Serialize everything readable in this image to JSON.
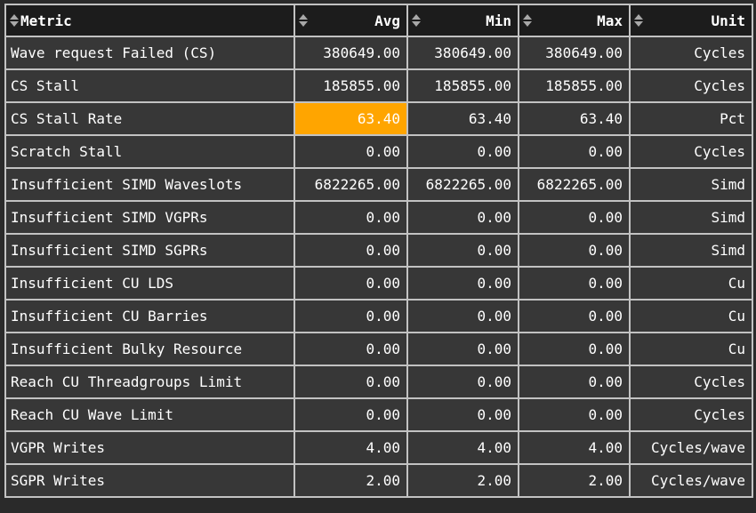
{
  "colors": {
    "page_background": "#2a2a2a",
    "header_background": "#1c1c1c",
    "row_background": "#373737",
    "border": "#c2c2c2",
    "text": "#ffffff",
    "sort_arrow": "#a8a8a8",
    "highlight": "#ffa500"
  },
  "table": {
    "columns": [
      {
        "key": "metric",
        "label": "Metric",
        "sort_icon": "sort-arrows-icon"
      },
      {
        "key": "avg",
        "label": "Avg",
        "sort_icon": "sort-arrows-icon"
      },
      {
        "key": "min",
        "label": "Min",
        "sort_icon": "sort-arrows-icon"
      },
      {
        "key": "max",
        "label": "Max",
        "sort_icon": "sort-arrows-icon"
      },
      {
        "key": "unit",
        "label": "Unit",
        "sort_icon": "sort-arrows-icon"
      }
    ],
    "rows": [
      {
        "metric": "Wave request Failed (CS)",
        "avg": "380649.00",
        "min": "380649.00",
        "max": "380649.00",
        "unit": "Cycles"
      },
      {
        "metric": "CS Stall",
        "avg": "185855.00",
        "min": "185855.00",
        "max": "185855.00",
        "unit": "Cycles"
      },
      {
        "metric": "CS Stall Rate",
        "avg": "63.40",
        "min": "63.40",
        "max": "63.40",
        "unit": "Pct"
      },
      {
        "metric": "Scratch Stall",
        "avg": "0.00",
        "min": "0.00",
        "max": "0.00",
        "unit": "Cycles"
      },
      {
        "metric": "Insufficient SIMD Waveslots",
        "avg": "6822265.00",
        "min": "6822265.00",
        "max": "6822265.00",
        "unit": "Simd"
      },
      {
        "metric": "Insufficient SIMD VGPRs",
        "avg": "0.00",
        "min": "0.00",
        "max": "0.00",
        "unit": "Simd"
      },
      {
        "metric": "Insufficient SIMD SGPRs",
        "avg": "0.00",
        "min": "0.00",
        "max": "0.00",
        "unit": "Simd"
      },
      {
        "metric": "Insufficient CU LDS",
        "avg": "0.00",
        "min": "0.00",
        "max": "0.00",
        "unit": "Cu"
      },
      {
        "metric": "Insufficient CU Barries",
        "avg": "0.00",
        "min": "0.00",
        "max": "0.00",
        "unit": "Cu"
      },
      {
        "metric": "Insufficient Bulky Resource",
        "avg": "0.00",
        "min": "0.00",
        "max": "0.00",
        "unit": "Cu"
      },
      {
        "metric": "Reach CU Threadgroups Limit",
        "avg": "0.00",
        "min": "0.00",
        "max": "0.00",
        "unit": "Cycles"
      },
      {
        "metric": "Reach CU Wave Limit",
        "avg": "0.00",
        "min": "0.00",
        "max": "0.00",
        "unit": "Cycles"
      },
      {
        "metric": "VGPR Writes",
        "avg": "4.00",
        "min": "4.00",
        "max": "4.00",
        "unit": "Cycles/wave"
      },
      {
        "metric": "SGPR Writes",
        "avg": "2.00",
        "min": "2.00",
        "max": "2.00",
        "unit": "Cycles/wave"
      }
    ],
    "highlight": {
      "row_index": 2,
      "column": "avg"
    }
  }
}
